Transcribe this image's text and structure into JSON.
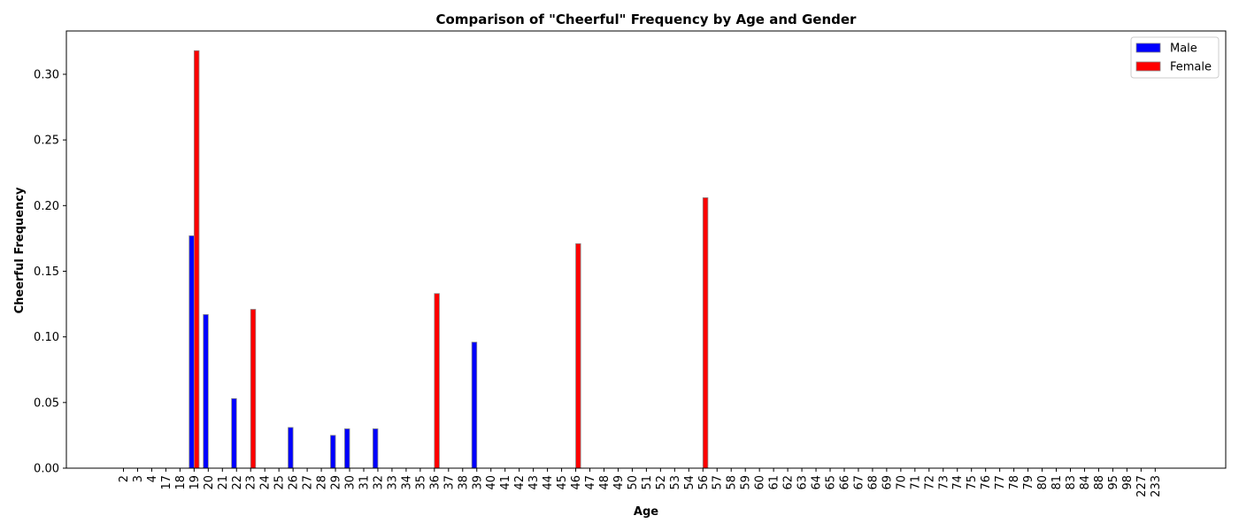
{
  "chart_data": {
    "type": "bar",
    "title": "Comparison of \"Cheerful\" Frequency by Age and Gender",
    "xlabel": "Age",
    "ylabel": "Cheerful Frequency",
    "ylim": [
      0,
      0.333
    ],
    "yticks": [
      "0.00",
      "0.05",
      "0.10",
      "0.15",
      "0.20",
      "0.25",
      "0.30"
    ],
    "legend_position": "top-right",
    "grid": false,
    "categories": [
      "2",
      "3",
      "4",
      "17",
      "18",
      "19",
      "20",
      "21",
      "22",
      "23",
      "24",
      "25",
      "26",
      "27",
      "28",
      "29",
      "30",
      "31",
      "32",
      "33",
      "34",
      "35",
      "36",
      "37",
      "38",
      "39",
      "40",
      "41",
      "42",
      "43",
      "44",
      "45",
      "46",
      "47",
      "48",
      "49",
      "50",
      "51",
      "52",
      "53",
      "54",
      "56",
      "57",
      "58",
      "59",
      "60",
      "61",
      "62",
      "63",
      "64",
      "65",
      "66",
      "67",
      "68",
      "69",
      "70",
      "71",
      "72",
      "73",
      "74",
      "75",
      "76",
      "77",
      "78",
      "79",
      "80",
      "81",
      "83",
      "84",
      "88",
      "95",
      "98",
      "227",
      "233"
    ],
    "series": [
      {
        "name": "Male",
        "color": "#0000ff",
        "values": [
          0,
          0,
          0,
          0,
          0,
          0.177,
          0.117,
          0,
          0.053,
          0,
          0,
          0,
          0.031,
          0,
          0,
          0.025,
          0.03,
          0,
          0.03,
          0,
          0,
          0,
          0,
          0,
          0,
          0.096,
          0,
          0,
          0,
          0,
          0,
          0,
          0,
          0,
          0,
          0,
          0,
          0,
          0,
          0,
          0,
          0,
          0,
          0,
          0,
          0,
          0,
          0,
          0,
          0,
          0,
          0,
          0,
          0,
          0,
          0,
          0,
          0,
          0,
          0,
          0,
          0,
          0,
          0,
          0,
          0,
          0,
          0,
          0,
          0,
          0,
          0,
          0,
          0
        ]
      },
      {
        "name": "Female",
        "color": "#ff0000",
        "values": [
          0,
          0,
          0,
          0,
          0,
          0.318,
          0,
          0,
          0,
          0.121,
          0,
          0,
          0,
          0,
          0,
          0,
          0,
          0,
          0,
          0,
          0,
          0,
          0.133,
          0,
          0,
          0,
          0,
          0,
          0,
          0,
          0,
          0,
          0.171,
          0,
          0,
          0,
          0,
          0,
          0,
          0,
          0,
          0.206,
          0,
          0,
          0,
          0,
          0,
          0,
          0,
          0,
          0,
          0,
          0,
          0,
          0,
          0,
          0,
          0,
          0,
          0,
          0,
          0,
          0,
          0,
          0,
          0,
          0,
          0,
          0,
          0,
          0,
          0,
          0,
          0
        ]
      }
    ]
  }
}
